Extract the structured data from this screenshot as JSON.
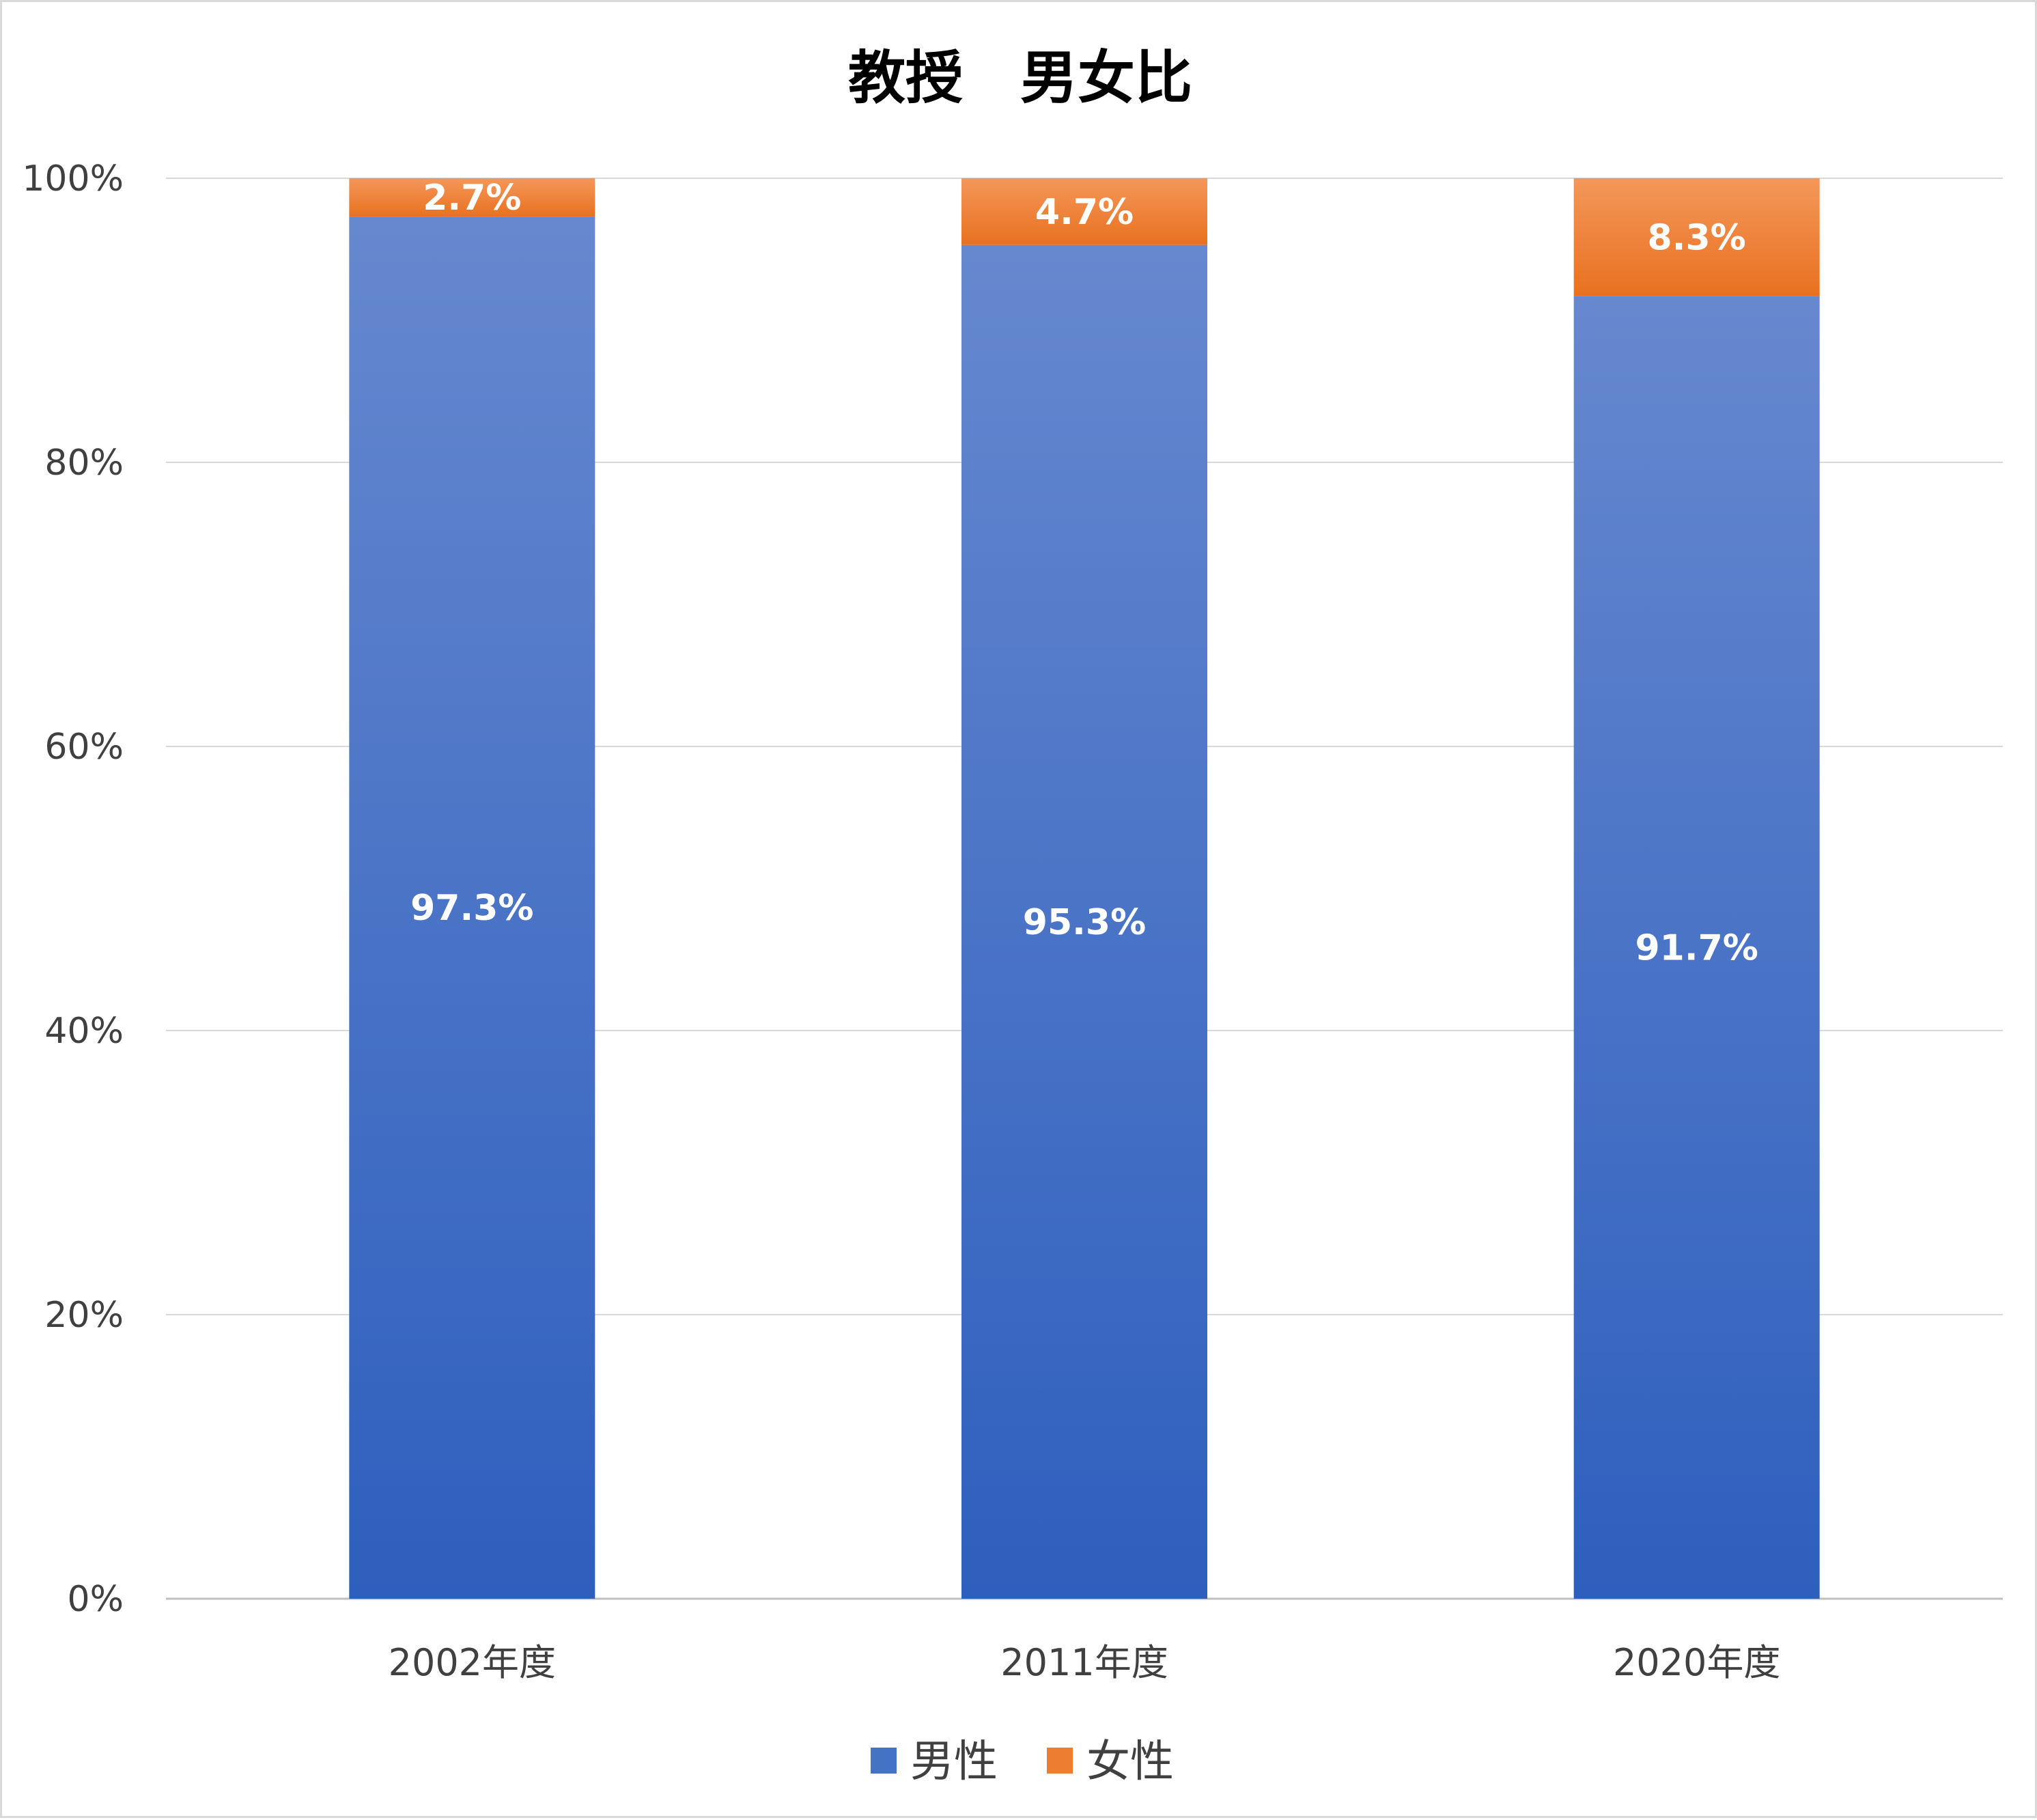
{
  "chart_data": {
    "type": "bar",
    "stacked": true,
    "title": "教授　男女比",
    "categories": [
      "2002年度",
      "2011年度",
      "2020年度"
    ],
    "series": [
      {
        "name": "男性",
        "values": [
          97.3,
          95.3,
          91.7
        ],
        "labels": [
          "97.3%",
          "95.3%",
          "91.7%"
        ],
        "color": "#4472c4"
      },
      {
        "name": "女性",
        "values": [
          2.7,
          4.7,
          8.3
        ],
        "labels": [
          "2.7%",
          "4.7%",
          "8.3%"
        ],
        "color": "#ed7d31"
      }
    ],
    "yticks": [
      "0%",
      "20%",
      "40%",
      "60%",
      "80%",
      "100%"
    ],
    "ylim": [
      0,
      100
    ],
    "grid": true,
    "legend": "bottom"
  }
}
